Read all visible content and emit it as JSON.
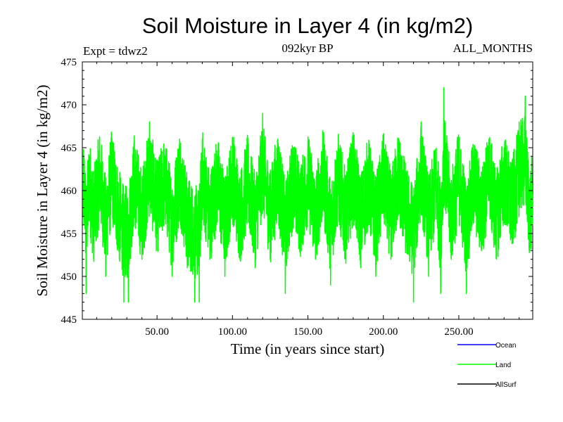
{
  "chart_data": {
    "type": "line",
    "title": "Soil Moisture in Layer 4 (in kg/m2)",
    "subtitle_left": "Expt = tdwz2",
    "subtitle_center": "092kyr BP",
    "subtitle_right": "ALL_MONTHS",
    "xlabel": "Time (in years since start)",
    "ylabel": "Soil Moisture in Layer 4 (in kg/m2)",
    "xlim": [
      0.5,
      299
    ],
    "ylim": [
      445,
      475
    ],
    "x_ticks": [
      50,
      100,
      150,
      200,
      250
    ],
    "x_tick_labels": [
      "50.00",
      "100.00",
      "150.00",
      "200.00",
      "250.00"
    ],
    "y_ticks": [
      445,
      450,
      455,
      460,
      465,
      470,
      475
    ],
    "y_tick_labels": [
      "445",
      "450",
      "455",
      "460",
      "465",
      "470",
      "475"
    ],
    "grid": false,
    "legend_position": "bottom-right",
    "series": [
      {
        "name": "Ocean",
        "color": "#0000ff",
        "values": []
      },
      {
        "name": "Land",
        "color": "#00ff00",
        "mean": 459.5,
        "min": 446.5,
        "max": 472.5,
        "anchors": [
          [
            1,
            458
          ],
          [
            2,
            462
          ],
          [
            3,
            448
          ],
          [
            5,
            464
          ],
          [
            8,
            452
          ],
          [
            12,
            466
          ],
          [
            16,
            450
          ],
          [
            20,
            466
          ],
          [
            25,
            452
          ],
          [
            28,
            447
          ],
          [
            31,
            447
          ],
          [
            35,
            465
          ],
          [
            40,
            452
          ],
          [
            45,
            468
          ],
          [
            50,
            455
          ],
          [
            55,
            464
          ],
          [
            60,
            450
          ],
          [
            65,
            466
          ],
          [
            70,
            451
          ],
          [
            75,
            447
          ],
          [
            78,
            447
          ],
          [
            80,
            466
          ],
          [
            85,
            452
          ],
          [
            90,
            464
          ],
          [
            95,
            450
          ],
          [
            100,
            466
          ],
          [
            105,
            452
          ],
          [
            110,
            464
          ],
          [
            115,
            451
          ],
          [
            120,
            469
          ],
          [
            125,
            452
          ],
          [
            130,
            466
          ],
          [
            135,
            448
          ],
          [
            140,
            464
          ],
          [
            145,
            454
          ],
          [
            150,
            465
          ],
          [
            155,
            452
          ],
          [
            160,
            466
          ],
          [
            165,
            449
          ],
          [
            170,
            465
          ],
          [
            175,
            452
          ],
          [
            180,
            466
          ],
          [
            185,
            451
          ],
          [
            190,
            464
          ],
          [
            195,
            450
          ],
          [
            200,
            465
          ],
          [
            205,
            452
          ],
          [
            210,
            466
          ],
          [
            215,
            454
          ],
          [
            220,
            447
          ],
          [
            225,
            468
          ],
          [
            230,
            450
          ],
          [
            235,
            463
          ],
          [
            238,
            448
          ],
          [
            240,
            472
          ],
          [
            245,
            452
          ],
          [
            250,
            466
          ],
          [
            255,
            448
          ],
          [
            260,
            464
          ],
          [
            265,
            453
          ],
          [
            270,
            466
          ],
          [
            275,
            452
          ],
          [
            280,
            465
          ],
          [
            285,
            455
          ],
          [
            290,
            468
          ],
          [
            294,
            471
          ],
          [
            297,
            453
          ],
          [
            299,
            459
          ]
        ]
      },
      {
        "name": "AllSurf",
        "color": "#000000",
        "values": []
      }
    ]
  }
}
